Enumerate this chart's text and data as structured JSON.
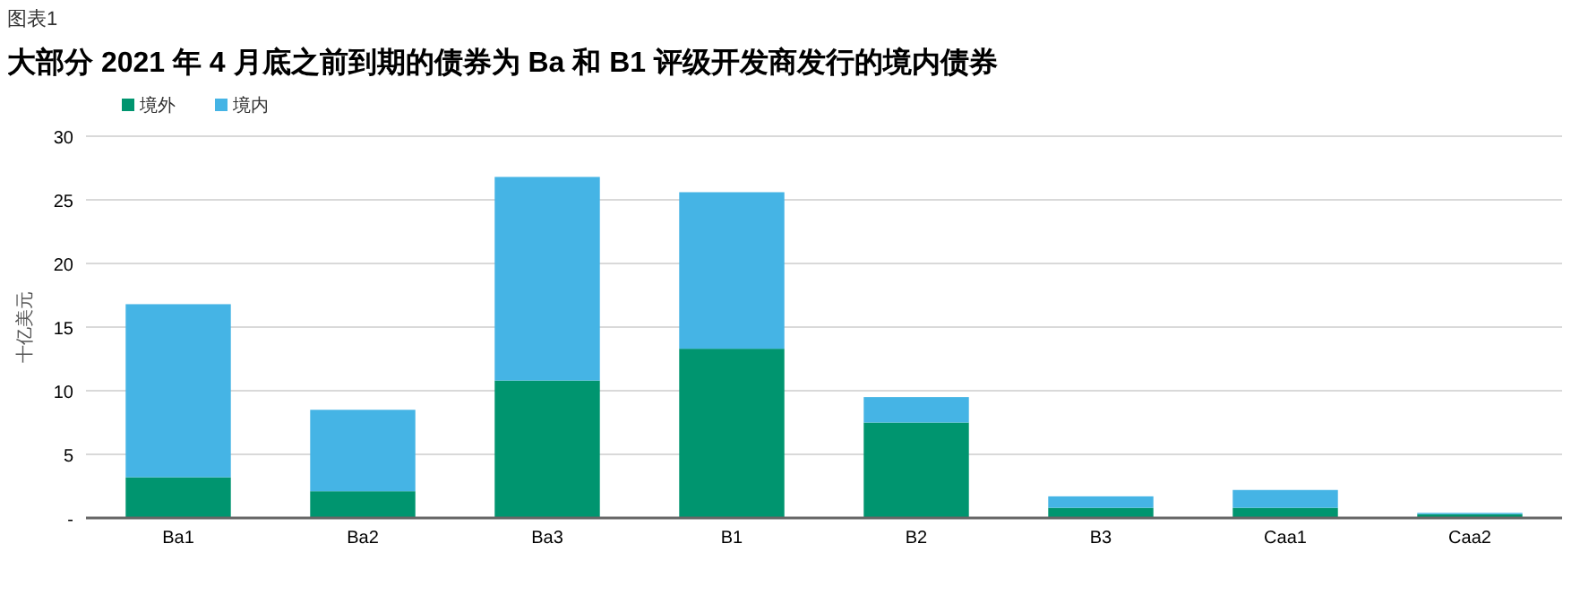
{
  "chart_data": {
    "type": "bar",
    "stacked": true,
    "title": "大部分 2021 年 4 月底之前到期的债券为 Ba 和 B1 评级开发商发行的境内债券",
    "ylabel": "十亿美元",
    "annotations": [
      "图表1"
    ],
    "categories": [
      "Ba1",
      "Ba2",
      "Ba3",
      "B1",
      "B2",
      "B3",
      "Caa1",
      "Caa2"
    ],
    "series": [
      {
        "name": "境外",
        "color": "#00956f",
        "values": [
          3.2,
          2.1,
          10.8,
          13.3,
          7.5,
          0.8,
          0.8,
          0.3
        ]
      },
      {
        "name": "境内",
        "color": "#45b4e5",
        "values": [
          13.6,
          6.4,
          16.0,
          12.3,
          2.0,
          0.9,
          1.4,
          0.1
        ]
      }
    ],
    "ylim": [
      0,
      30
    ],
    "yticks": [
      {
        "value": 0,
        "label": "-"
      },
      5,
      10,
      15,
      20,
      25,
      30
    ],
    "grid": "y",
    "legend": "top left"
  }
}
